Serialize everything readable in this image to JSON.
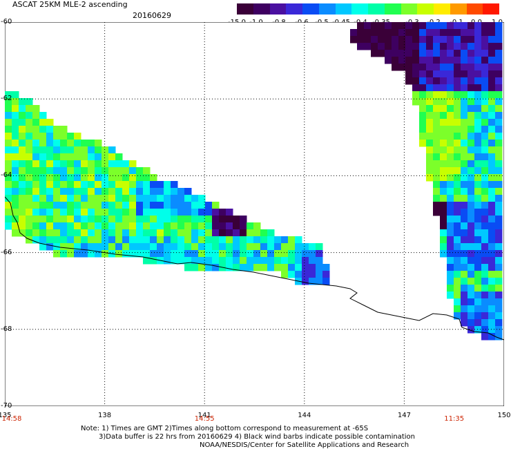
{
  "header": {
    "title": "ASCAT 25KM MLE-2 ascending",
    "date": "20160629"
  },
  "colorbar": {
    "colors": [
      "#3a0038",
      "#3e0060",
      "#4a10a0",
      "#3a28d8",
      "#0a4cf4",
      "#0a8cff",
      "#00c8ff",
      "#00ffea",
      "#00ffa8",
      "#20ff50",
      "#7cff2a",
      "#c8ff00",
      "#ffec00",
      "#ff9a00",
      "#ff4a00",
      "#ff1800"
    ],
    "labels": [
      "-15.0",
      "-1.0",
      "-0.8",
      "-0.6",
      "-0.5",
      "-0.45",
      "-0.4",
      "-0.35",
      "-0.3",
      "-0.2",
      "-0.1",
      "0.0",
      "1.0"
    ]
  },
  "axes": {
    "x_ticks": [
      "135",
      "138",
      "141",
      "144",
      "147",
      "150"
    ],
    "y_ticks": [
      "-60",
      "-62",
      "-64",
      "-66",
      "-68",
      "-70"
    ],
    "time_labels": [
      {
        "at": "135",
        "text": "14:58"
      },
      {
        "at": "141",
        "text": "14:55"
      },
      {
        "at": "148.5",
        "text": "11:35"
      }
    ]
  },
  "map_extent": {
    "lon_min": 135,
    "lon_max": 150,
    "lat_min": -70,
    "lat_max": -60
  },
  "notes": {
    "line1": "Note: 1) Times are GMT 2)Times along bottom correspond to measurement at -65S",
    "line2": "3)Data buffer is 22 hrs from 20160629 4) Black wind barbs indicate possible contamination",
    "line3": "NOAA/NESDIS/Center for Satellite Applications and Research"
  }
}
